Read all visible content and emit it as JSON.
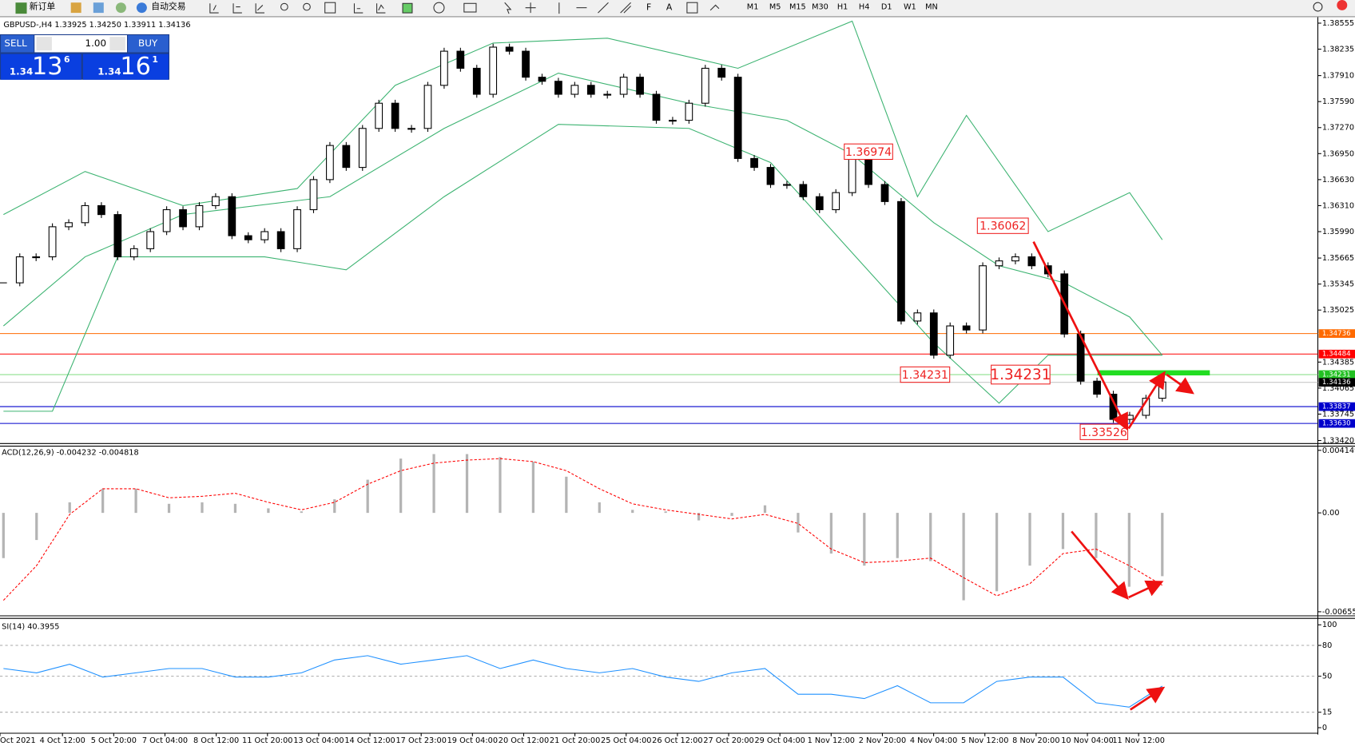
{
  "toolbar": {
    "new_order": "新订单",
    "auto_trading": "自动交易",
    "timeframes": [
      "M1",
      "M5",
      "M15",
      "M30",
      "H1",
      "H4",
      "D1",
      "W1",
      "MN"
    ]
  },
  "trade_panel": {
    "sell": "SELL",
    "lots": "1.00",
    "buy": "BUY",
    "sell_big": "1.34",
    "sell_pips": "13",
    "sell_point": "6",
    "buy_big": "1.34",
    "buy_pips": "16",
    "buy_point": "1"
  },
  "time_labels": [
    "Oct 2021",
    "4 Oct 12:00",
    "5 Oct 20:00",
    "7 Oct 04:00",
    "8 Oct 12:00",
    "11 Oct 20:00",
    "13 Oct 04:00",
    "14 Oct 12:00",
    "17 Oct 23:00",
    "19 Oct 04:00",
    "20 Oct 12:00",
    "21 Oct 20:00",
    "25 Oct 04:00",
    "26 Oct 12:00",
    "27 Oct 20:00",
    "29 Oct 04:00",
    "1 Nov 12:00",
    "2 Nov 20:00",
    "4 Nov 04:00",
    "5 Nov 12:00",
    "8 Nov 20:00",
    "10 Nov 04:00",
    "11 Nov 12:00"
  ],
  "chart_data": [
    {
      "type": "candlestick",
      "title": "GBPUSD-,H4 1.33925 1.34250 1.33911 1.34136",
      "closes": [
        1.3536,
        1.3568,
        1.3568,
        1.3605,
        1.361,
        1.3631,
        1.362,
        1.3568,
        1.3578,
        1.3599,
        1.3626,
        1.3605,
        1.3631,
        1.3642,
        1.3594,
        1.3589,
        1.3599,
        1.3578,
        1.3626,
        1.3663,
        1.3705,
        1.3678,
        1.3726,
        1.3757,
        1.3726,
        1.3726,
        1.3779,
        1.3821,
        1.38,
        1.3768,
        1.3826,
        1.3821,
        1.3789,
        1.3784,
        1.3768,
        1.3779,
        1.3768,
        1.3768,
        1.3789,
        1.3768,
        1.3736,
        1.3736,
        1.3757,
        1.38,
        1.3789,
        1.3689,
        1.3678,
        1.3657,
        1.3657,
        1.3642,
        1.3626,
        1.3647,
        1.3689,
        1.3657,
        1.3636,
        1.3489,
        1.3499,
        1.3447,
        1.3483,
        1.3478,
        1.3557,
        1.3563,
        1.3568,
        1.3557,
        1.3547,
        1.3473,
        1.3415,
        1.3399,
        1.3368,
        1.3373,
        1.3394,
        1.3414
      ],
      "bands": [
        {
          "color": "#3cb371",
          "x": [
            0,
            5,
            11,
            18,
            24,
            30,
            37,
            45,
            52,
            56,
            59,
            64,
            69,
            71
          ],
          "values": [
            1.362,
            1.3673,
            1.3631,
            1.3652,
            1.3779,
            1.3831,
            1.3837,
            1.38,
            1.3858,
            1.3642,
            1.3742,
            1.3599,
            1.3647,
            1.3589
          ]
        },
        {
          "color": "#3cb371",
          "x": [
            0,
            5,
            11,
            20,
            27,
            34,
            42,
            48,
            52,
            57,
            61,
            65,
            69,
            71
          ],
          "values": [
            1.3483,
            1.3568,
            1.362,
            1.3642,
            1.3726,
            1.3794,
            1.3757,
            1.3736,
            1.3694,
            1.361,
            1.3557,
            1.3536,
            1.3494,
            1.3447
          ]
        },
        {
          "color": "#3cb371",
          "x": [
            0,
            3,
            7,
            16,
            21,
            27,
            34,
            42,
            47,
            52,
            57,
            61,
            64,
            71
          ],
          "values": [
            1.3378,
            1.3378,
            1.3568,
            1.3568,
            1.3552,
            1.3642,
            1.3731,
            1.3726,
            1.3684,
            1.3573,
            1.3462,
            1.3388,
            1.3447,
            1.3447
          ]
        }
      ],
      "ylim": [
        1.33388,
        1.38629
      ],
      "yticks": [
        1.38555,
        1.38235,
        {
          "value": 1.3791,
          "label": "1.37910"
        },
        {
          "value": 1.3759,
          "label": "1.37590"
        },
        {
          "value": 1.3727,
          "label": "1.37270"
        },
        {
          "value": 1.3695,
          "label": "1.36950"
        },
        {
          "value": 1.3663,
          "label": "1.36630"
        },
        {
          "value": 1.3631,
          "label": "1.36310"
        },
        {
          "value": 1.3599,
          "label": "1.35990"
        },
        1.35665,
        1.35345,
        1.35025,
        1.34385,
        1.34065,
        1.33745,
        {
          "value": 1.3342,
          "label": "1.33420"
        }
      ],
      "levels": [
        {
          "price": 1.34736,
          "color": "#ff6a00",
          "label_color": "#ff6a00"
        },
        {
          "price": 1.34484,
          "color": "#ff0000",
          "label_color": "#ff0000"
        },
        {
          "price": 1.34231,
          "color": "#7fdc7f",
          "label_color": "#22c022"
        },
        {
          "price": 1.34136,
          "color": "#c8c8c8",
          "label_color": "#000000"
        },
        {
          "price": 1.33837,
          "color": "#0000cc",
          "label_color": "#0000cc"
        },
        {
          "price": {
            "value": 1.3363,
            "label": "1.33630"
          },
          "color": "#0000cc",
          "label_color": "#0000cc"
        }
      ],
      "annotations": [
        1.36974,
        1.36062,
        1.34231,
        1.34231,
        1.33526
      ]
    },
    {
      "type": "macd",
      "title": "ACD(12,26,9) -0.004232 -0.004818",
      "histogram": [
        -0.003,
        -0.0018,
        0.0007,
        0.0016,
        0.0016,
        0.0006,
        0.0007,
        0.0006,
        0.0003,
        0.0001,
        0.0009,
        0.0022,
        0.0036,
        0.0039,
        0.0039,
        0.0037,
        0.0034,
        0.0024,
        0.0007,
        0.0002,
        0.0001,
        -0.0005,
        -0.0002,
        0.0005,
        -0.0013,
        -0.0027,
        -0.0035,
        -0.003,
        -0.0032,
        -0.0058,
        -0.0052,
        -0.0035,
        -0.0024,
        -0.003,
        -0.0049,
        -0.0042
      ],
      "signal": [
        -0.0058,
        -0.0035,
        -0.0001,
        0.0016,
        0.0016,
        0.001,
        0.0011,
        0.0013,
        0.0007,
        0.0002,
        0.0007,
        0.0019,
        0.0028,
        0.0033,
        0.0035,
        0.0036,
        0.0034,
        0.0028,
        0.0016,
        0.0006,
        0.0002,
        -0.0001,
        -0.0004,
        -0.0001,
        -0.0007,
        -0.0024,
        -0.0033,
        -0.0032,
        -0.003,
        -0.0043,
        -0.0055,
        -0.0047,
        -0.0027,
        -0.0024,
        -0.0035,
        -0.0048
      ],
      "hist_color": "#b4b4b4",
      "signal_color": "#ff0000",
      "ylim": [
        -0.0068,
        0.0044
      ],
      "yticks": [
        0.004149,
        {
          "value": 0,
          "label": "0.00"
        },
        -0.006559
      ]
    },
    {
      "type": "rsi",
      "title": "SI(14) 40.3955",
      "values": [
        57.5,
        53.3,
        61.7,
        49.2,
        53.3,
        57.5,
        57.5,
        49.2,
        49.2,
        53.3,
        65.8,
        70,
        61.7,
        65.8,
        70,
        57.5,
        65.8,
        57.5,
        53.3,
        57.5,
        49.2,
        45,
        53.3,
        57.5,
        32.5,
        32.5,
        28.3,
        40.8,
        24.2,
        24.2,
        45,
        49.2,
        49.2,
        24.2,
        20,
        40.4
      ],
      "color": "#1e90ff",
      "ylim": [
        0,
        100
      ],
      "yticks": [
        100,
        80,
        50,
        15,
        0
      ]
    }
  ]
}
